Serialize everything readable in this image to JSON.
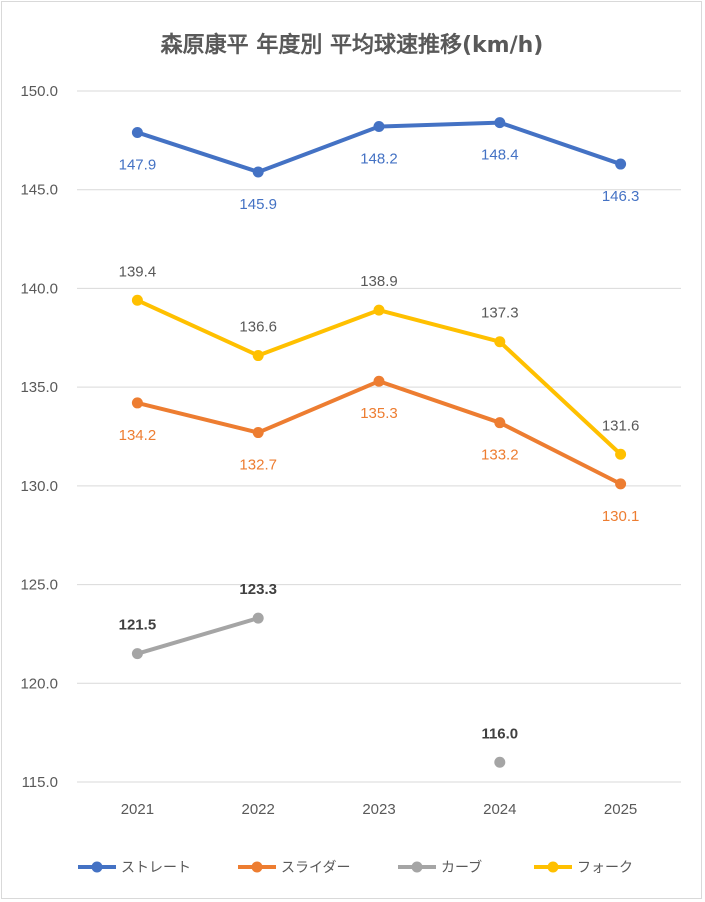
{
  "chart_data": {
    "type": "line",
    "title": "森原康平 年度別 平均球速推移(km/h)",
    "xlabel": "",
    "ylabel": "",
    "categories": [
      "2021",
      "2022",
      "2023",
      "2024",
      "2025"
    ],
    "ylim": [
      115.0,
      150.0
    ],
    "yticks": [
      "115.0",
      "120.0",
      "125.0",
      "130.0",
      "135.0",
      "140.0",
      "145.0",
      "150.0"
    ],
    "grid": true,
    "legend_position": "bottom",
    "series": [
      {
        "name": "ストレート",
        "color": "#4472C4",
        "label_color": "#4472C4",
        "label_pos": "below",
        "label_bold": false,
        "values": [
          147.9,
          145.9,
          148.2,
          148.4,
          146.3
        ],
        "labels": [
          "147.9",
          "145.9",
          "148.2",
          "148.4",
          "146.3"
        ]
      },
      {
        "name": "スライダー",
        "color": "#ED7D31",
        "label_color": "#ED7D31",
        "label_pos": "below",
        "label_bold": false,
        "values": [
          134.2,
          132.7,
          135.3,
          133.2,
          130.1
        ],
        "labels": [
          "134.2",
          "132.7",
          "135.3",
          "133.2",
          "130.1"
        ]
      },
      {
        "name": "カーブ",
        "color": "#A5A5A5",
        "label_color": "#404040",
        "label_pos": "above",
        "label_bold": true,
        "values": [
          121.5,
          123.3,
          null,
          116.0,
          null
        ],
        "labels": [
          "121.5",
          "123.3",
          "",
          "116.0",
          ""
        ]
      },
      {
        "name": "フォーク",
        "color": "#FFC000",
        "label_color": "#595959",
        "label_pos": "above",
        "label_bold": false,
        "values": [
          139.4,
          136.6,
          138.9,
          137.3,
          131.6
        ],
        "labels": [
          "139.4",
          "136.6",
          "138.9",
          "137.3",
          "131.6"
        ]
      }
    ]
  }
}
